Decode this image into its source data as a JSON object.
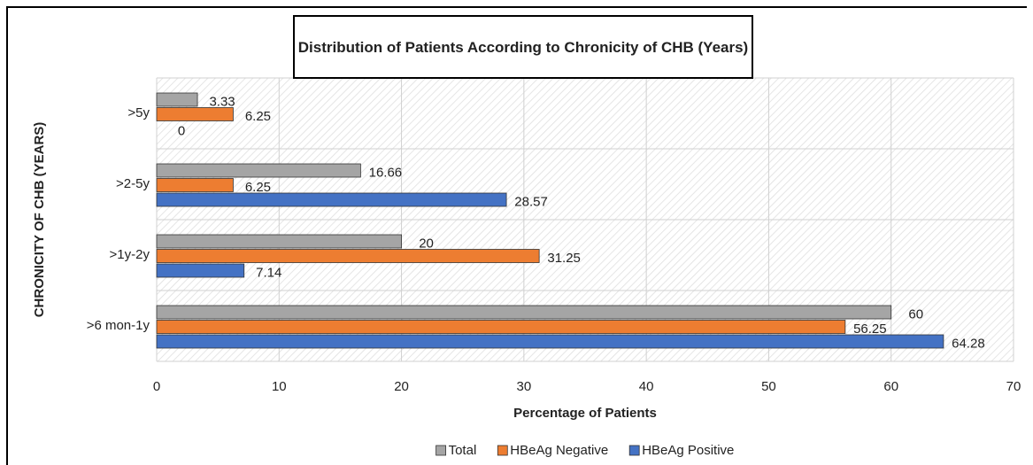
{
  "chart_data": {
    "type": "hbar",
    "title": "Distribution of Patients According to Chronicity of CHB (Years)",
    "x_label": "Percentage of Patients",
    "y_label": "CHRONICITY OF CHB (YEARS)",
    "categories": [
      ">5y",
      ">2-5y",
      ">1y-2y",
      ">6 mon-1y"
    ],
    "series": [
      {
        "name": "Total",
        "color": "#a5a5a5",
        "values": [
          3.33,
          16.66,
          20,
          60
        ]
      },
      {
        "name": "HBeAg Negative",
        "color": "#ed7d31",
        "values": [
          6.25,
          6.25,
          31.25,
          56.25
        ]
      },
      {
        "name": "HBeAg Positive",
        "color": "#4472c4",
        "values": [
          0,
          28.57,
          7.14,
          64.28
        ]
      }
    ],
    "xlim": [
      0,
      70
    ],
    "xticks": [
      0,
      10,
      20,
      30,
      40,
      50,
      60,
      70
    ],
    "grid": true,
    "legend": "bottom"
  }
}
